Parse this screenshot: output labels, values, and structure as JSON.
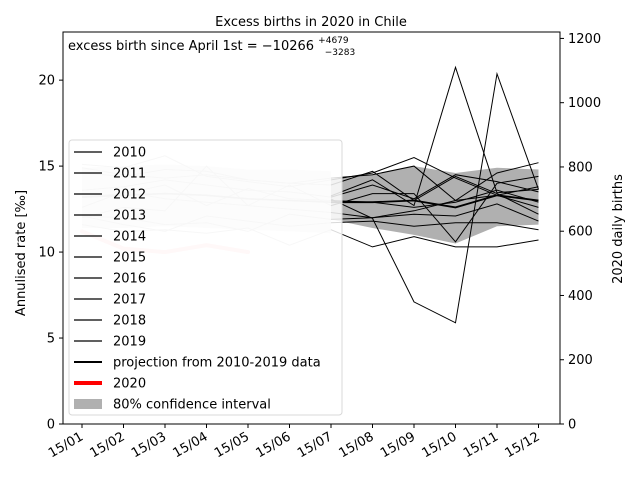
{
  "chart_data": {
    "type": "line",
    "title": "Excess births in 2020 in Chile",
    "annotation": {
      "prefix": "excess birth since April 1st = −10266",
      "sup": "+4679",
      "sub": "−3283"
    },
    "ylabel": "Annulised rate [‰]",
    "ylabel_right": "2020 daily births",
    "ylim": [
      0,
      22.8
    ],
    "ylim_right": [
      0,
      1220
    ],
    "yticks": [
      0,
      5,
      10,
      15,
      20
    ],
    "yticks_right": [
      0,
      200,
      400,
      600,
      800,
      1000,
      1200
    ],
    "categories": [
      "15/01",
      "15/02",
      "15/03",
      "15/04",
      "15/05",
      "15/06",
      "15/07",
      "15/08",
      "15/09",
      "15/10",
      "15/11",
      "15/12"
    ],
    "grid": false,
    "legend_position": "lower left",
    "history_series": [
      {
        "name": "2010",
        "values": [
          15.1,
          14.9,
          15.6,
          14.4,
          14.1,
          13.8,
          14.2,
          14.6,
          15.5,
          14.3,
          13.3,
          12.6
        ]
      },
      {
        "name": "2011",
        "values": [
          14.9,
          14.5,
          14.3,
          14.5,
          14.2,
          14.0,
          13.9,
          14.7,
          13.0,
          14.4,
          13.4,
          12.2
        ]
      },
      {
        "name": "2012",
        "values": [
          14.6,
          14.4,
          14.8,
          14.7,
          14.2,
          14.0,
          14.3,
          14.5,
          15.0,
          13.0,
          14.6,
          15.2
        ]
      },
      {
        "name": "2013",
        "values": [
          13.6,
          13.8,
          14.2,
          13.9,
          13.6,
          13.5,
          13.2,
          13.9,
          13.1,
          14.5,
          14.1,
          13.5
        ]
      },
      {
        "name": "2014",
        "values": [
          13.2,
          13.4,
          13.9,
          12.7,
          13.7,
          13.1,
          13.0,
          12.9,
          12.6,
          12.9,
          13.6,
          12.9
        ]
      },
      {
        "name": "2015",
        "values": [
          12.6,
          13.5,
          13.1,
          12.9,
          12.7,
          12.5,
          12.3,
          12.0,
          12.2,
          12.1,
          12.8,
          11.8
        ]
      },
      {
        "name": "2016",
        "values": [
          12.0,
          12.6,
          12.4,
          15.0,
          12.7,
          13.9,
          12.7,
          13.4,
          13.4,
          10.6,
          14.0,
          14.4
        ]
      },
      {
        "name": "2017",
        "values": [
          12.1,
          12.0,
          11.6,
          11.7,
          11.2,
          12.2,
          11.9,
          12.0,
          12.4,
          13.0,
          13.3,
          13.8
        ]
      },
      {
        "name": "2018",
        "values": [
          12.1,
          11.6,
          11.2,
          12.1,
          11.8,
          11.5,
          11.7,
          11.8,
          11.5,
          11.7,
          11.7,
          11.3
        ]
      },
      {
        "name": "2019",
        "values": [
          11.6,
          11.2,
          11.3,
          11.1,
          11.4,
          10.4,
          11.3,
          10.3,
          10.9,
          10.3,
          10.3,
          10.7
        ]
      }
    ],
    "projection": {
      "name": "projection from 2010-2019 data",
      "values": [
        13.2,
        13.3,
        13.4,
        13.3,
        13.1,
        13.0,
        12.9,
        12.9,
        13.0,
        12.6,
        13.3,
        13.0
      ]
    },
    "confidence_interval": {
      "name": "80% confidence interval",
      "upper": [
        14.4,
        14.5,
        14.6,
        14.5,
        14.3,
        14.3,
        14.2,
        14.5,
        15.0,
        14.6,
        14.9,
        14.8
      ],
      "lower": [
        12.2,
        12.2,
        12.3,
        12.2,
        12.1,
        12.0,
        11.9,
        11.4,
        11.0,
        10.5,
        11.5,
        11.6
      ]
    },
    "daily_births_2020": {
      "axis": "right",
      "x_index": [
        6,
        7,
        8,
        9,
        10,
        11
      ],
      "values": [
        700,
        640,
        380,
        315,
        1090,
        730
      ],
      "x_index_b": [
        6,
        7,
        8,
        9,
        10,
        11
      ],
      "values_b": [
        710,
        760,
        680,
        1110,
        720,
        730
      ]
    },
    "series_2020": {
      "name": "2020",
      "values": [
        11.2,
        10.2,
        10.0,
        10.4,
        10.0
      ]
    },
    "colors": {
      "history": "#c8c8c8",
      "history_ci": "#ececec",
      "projection": "#000000",
      "daily": "#000000",
      "ci": "#b0b0b0",
      "series_2020": "#ff0000",
      "series_2020_faded": "#ffcccc"
    },
    "legend": [
      {
        "label": "2010",
        "style": "thin"
      },
      {
        "label": "2011",
        "style": "thin"
      },
      {
        "label": "2012",
        "style": "thin"
      },
      {
        "label": "2013",
        "style": "thin"
      },
      {
        "label": "2014",
        "style": "thin"
      },
      {
        "label": "2015",
        "style": "thin"
      },
      {
        "label": "2016",
        "style": "thin"
      },
      {
        "label": "2017",
        "style": "thin"
      },
      {
        "label": "2018",
        "style": "thin"
      },
      {
        "label": "2019",
        "style": "thin"
      },
      {
        "label": "projection from 2010-2019 data",
        "style": "proj"
      },
      {
        "label": "2020",
        "style": "red"
      },
      {
        "label": "80% confidence interval",
        "style": "patch"
      }
    ]
  }
}
